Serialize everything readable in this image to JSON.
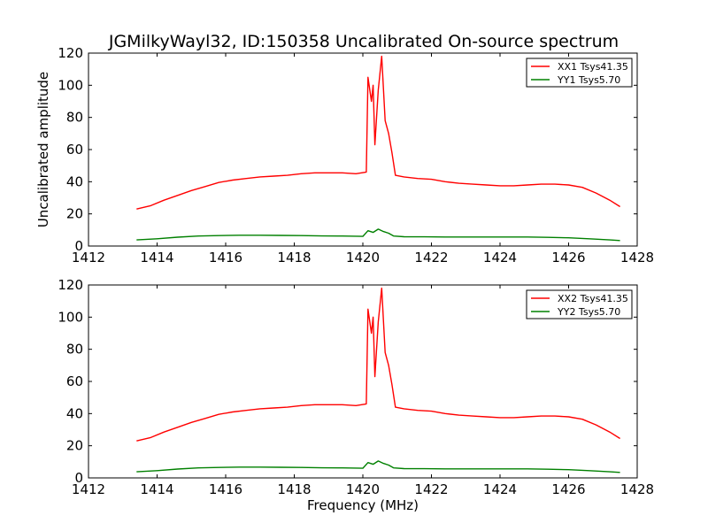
{
  "chart_data": {
    "type": "line",
    "title": "JGMilkyWayl32, ID:150358 Uncalibrated On-source spectrum",
    "xlabel": "Frequency (MHz)",
    "ylabel": "Uncalibrated amplitude",
    "xlim": [
      1412,
      1428
    ],
    "ylim": [
      0,
      120
    ],
    "xticks": [
      "1412",
      "1414",
      "1416",
      "1418",
      "1420",
      "1422",
      "1424",
      "1426",
      "1428"
    ],
    "yticks": [
      "0",
      "20",
      "40",
      "60",
      "80",
      "100",
      "120"
    ],
    "legend_position": "top-right",
    "panels": [
      {
        "series": [
          {
            "name": "XX1 Tsys41.35",
            "color": "#ff0000",
            "points": [
              [
                1413.4,
                23
              ],
              [
                1413.8,
                25
              ],
              [
                1414.2,
                28.5
              ],
              [
                1414.6,
                31.5
              ],
              [
                1415.0,
                34.5
              ],
              [
                1415.4,
                37
              ],
              [
                1415.8,
                39.5
              ],
              [
                1416.2,
                41
              ],
              [
                1416.6,
                42
              ],
              [
                1417.0,
                43
              ],
              [
                1417.4,
                43.5
              ],
              [
                1417.8,
                44
              ],
              [
                1418.2,
                45
              ],
              [
                1418.6,
                45.5
              ],
              [
                1419.0,
                45.5
              ],
              [
                1419.4,
                45.5
              ],
              [
                1419.8,
                45
              ],
              [
                1420.1,
                46
              ],
              [
                1420.15,
                105
              ],
              [
                1420.25,
                90
              ],
              [
                1420.3,
                100
              ],
              [
                1420.35,
                63
              ],
              [
                1420.45,
                97
              ],
              [
                1420.55,
                118
              ],
              [
                1420.65,
                78
              ],
              [
                1420.75,
                70
              ],
              [
                1420.85,
                58
              ],
              [
                1420.95,
                44
              ],
              [
                1421.2,
                43
              ],
              [
                1421.6,
                42
              ],
              [
                1422.0,
                41.5
              ],
              [
                1422.4,
                40
              ],
              [
                1422.8,
                39
              ],
              [
                1423.2,
                38.5
              ],
              [
                1423.6,
                38
              ],
              [
                1424.0,
                37.5
              ],
              [
                1424.4,
                37.5
              ],
              [
                1424.8,
                38
              ],
              [
                1425.2,
                38.5
              ],
              [
                1425.6,
                38.5
              ],
              [
                1426.0,
                38
              ],
              [
                1426.4,
                36.5
              ],
              [
                1426.8,
                33
              ],
              [
                1427.2,
                28.5
              ],
              [
                1427.5,
                24.5
              ]
            ]
          },
          {
            "name": "YY1 Tsys5.70",
            "color": "#008000",
            "points": [
              [
                1413.4,
                3.8
              ],
              [
                1414.0,
                4.5
              ],
              [
                1414.6,
                5.5
              ],
              [
                1415.2,
                6.2
              ],
              [
                1415.8,
                6.5
              ],
              [
                1416.4,
                6.7
              ],
              [
                1417.0,
                6.7
              ],
              [
                1417.6,
                6.6
              ],
              [
                1418.2,
                6.5
              ],
              [
                1418.8,
                6.3
              ],
              [
                1419.4,
                6.2
              ],
              [
                1420.0,
                6.0
              ],
              [
                1420.15,
                9.5
              ],
              [
                1420.3,
                8.5
              ],
              [
                1420.45,
                10.5
              ],
              [
                1420.6,
                9
              ],
              [
                1420.75,
                8
              ],
              [
                1420.9,
                6.2
              ],
              [
                1421.2,
                5.8
              ],
              [
                1421.8,
                5.7
              ],
              [
                1422.4,
                5.6
              ],
              [
                1423.0,
                5.6
              ],
              [
                1423.6,
                5.6
              ],
              [
                1424.2,
                5.6
              ],
              [
                1424.8,
                5.6
              ],
              [
                1425.4,
                5.4
              ],
              [
                1426.0,
                5.1
              ],
              [
                1426.6,
                4.5
              ],
              [
                1427.2,
                3.8
              ],
              [
                1427.5,
                3.4
              ]
            ]
          }
        ]
      },
      {
        "series": [
          {
            "name": "XX2 Tsys41.35",
            "color": "#ff0000",
            "points": [
              [
                1413.4,
                23
              ],
              [
                1413.8,
                25
              ],
              [
                1414.2,
                28.5
              ],
              [
                1414.6,
                31.5
              ],
              [
                1415.0,
                34.5
              ],
              [
                1415.4,
                37
              ],
              [
                1415.8,
                39.5
              ],
              [
                1416.2,
                41
              ],
              [
                1416.6,
                42
              ],
              [
                1417.0,
                43
              ],
              [
                1417.4,
                43.5
              ],
              [
                1417.8,
                44
              ],
              [
                1418.2,
                45
              ],
              [
                1418.6,
                45.5
              ],
              [
                1419.0,
                45.5
              ],
              [
                1419.4,
                45.5
              ],
              [
                1419.8,
                45
              ],
              [
                1420.1,
                46
              ],
              [
                1420.15,
                105
              ],
              [
                1420.25,
                90
              ],
              [
                1420.3,
                100
              ],
              [
                1420.35,
                63
              ],
              [
                1420.45,
                97
              ],
              [
                1420.55,
                118
              ],
              [
                1420.65,
                78
              ],
              [
                1420.75,
                70
              ],
              [
                1420.85,
                58
              ],
              [
                1420.95,
                44
              ],
              [
                1421.2,
                43
              ],
              [
                1421.6,
                42
              ],
              [
                1422.0,
                41.5
              ],
              [
                1422.4,
                40
              ],
              [
                1422.8,
                39
              ],
              [
                1423.2,
                38.5
              ],
              [
                1423.6,
                38
              ],
              [
                1424.0,
                37.5
              ],
              [
                1424.4,
                37.5
              ],
              [
                1424.8,
                38
              ],
              [
                1425.2,
                38.5
              ],
              [
                1425.6,
                38.5
              ],
              [
                1426.0,
                38
              ],
              [
                1426.4,
                36.5
              ],
              [
                1426.8,
                33
              ],
              [
                1427.2,
                28.5
              ],
              [
                1427.5,
                24.5
              ]
            ]
          },
          {
            "name": "YY2 Tsys5.70",
            "color": "#008000",
            "points": [
              [
                1413.4,
                3.8
              ],
              [
                1414.0,
                4.5
              ],
              [
                1414.6,
                5.5
              ],
              [
                1415.2,
                6.2
              ],
              [
                1415.8,
                6.5
              ],
              [
                1416.4,
                6.7
              ],
              [
                1417.0,
                6.7
              ],
              [
                1417.6,
                6.6
              ],
              [
                1418.2,
                6.5
              ],
              [
                1418.8,
                6.3
              ],
              [
                1419.4,
                6.2
              ],
              [
                1420.0,
                6.0
              ],
              [
                1420.15,
                9.5
              ],
              [
                1420.3,
                8.5
              ],
              [
                1420.45,
                10.5
              ],
              [
                1420.6,
                9
              ],
              [
                1420.75,
                8
              ],
              [
                1420.9,
                6.2
              ],
              [
                1421.2,
                5.8
              ],
              [
                1421.8,
                5.7
              ],
              [
                1422.4,
                5.6
              ],
              [
                1423.0,
                5.6
              ],
              [
                1423.6,
                5.6
              ],
              [
                1424.2,
                5.6
              ],
              [
                1424.8,
                5.6
              ],
              [
                1425.4,
                5.4
              ],
              [
                1426.0,
                5.1
              ],
              [
                1426.6,
                4.5
              ],
              [
                1427.2,
                3.8
              ],
              [
                1427.5,
                3.4
              ]
            ]
          }
        ]
      }
    ]
  }
}
